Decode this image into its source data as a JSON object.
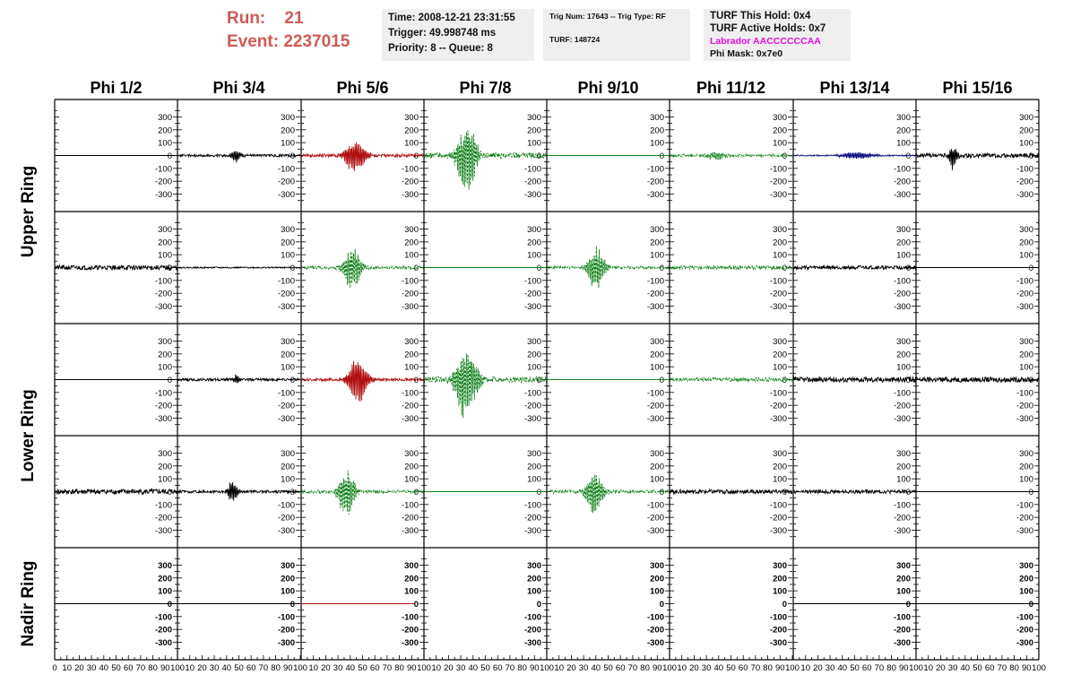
{
  "header": {
    "run_label": "Run:",
    "run_value": "21",
    "event_label": "Event:",
    "event_value": "2237015",
    "time": "Time: 2008-12-21 23:31:55",
    "trigger": "Trigger: 49.998748 ms",
    "priority": "Priority: 8 -- Queue: 8",
    "trig_num": "Trig Num: 17643 -- Trig Type: RF",
    "turf": "TURF: 148724",
    "turf_this_hold": "TURF This Hold: 0x4",
    "turf_active_holds": "TURF Active Holds: 0x7",
    "labrador": "Labrador AACCCCCCAA",
    "phi_mask": "Phi Mask: 0x7e0",
    "labrador_color": "#e010e0",
    "run_color": "#d05a54"
  },
  "chart_data": {
    "type": "line",
    "grid": false,
    "columns": [
      "Phi 1/2",
      "Phi 3/4",
      "Phi 5/6",
      "Phi 7/8",
      "Phi 9/10",
      "Phi 11/12",
      "Phi 13/14",
      "Phi 15/16"
    ],
    "ring_labels": [
      {
        "text": "Upper Ring",
        "rows": [
          0,
          1
        ]
      },
      {
        "text": "Lower Ring",
        "rows": [
          2,
          3
        ]
      },
      {
        "text": "Nadir Ring",
        "rows": [
          4,
          4
        ]
      }
    ],
    "xlim": [
      0,
      100
    ],
    "ylim": [
      -380,
      380
    ],
    "y_ticks": [
      -300,
      -200,
      -100,
      0,
      100,
      200,
      300
    ],
    "x_tick_labels": [
      "0",
      "10",
      "20",
      "30",
      "40",
      "50",
      "60",
      "70",
      "80",
      "90",
      "100"
    ],
    "colors": {
      "black": "#000000",
      "red": "#b01010",
      "green": "#11811a",
      "blue": "#101080"
    },
    "rows": [
      [
        {
          "color": "black",
          "flat": true
        },
        {
          "color": "black",
          "peak": 48,
          "amp": 55,
          "noise": 10,
          "width": 4,
          "seed": 11
        },
        {
          "color": "red",
          "peak": 44,
          "amp": 140,
          "noise": 12,
          "width": 9,
          "seed": 12
        },
        {
          "color": "green",
          "dashed": true,
          "peak": 35,
          "amp": 320,
          "noise": 22,
          "width": 8,
          "seed": 13
        },
        {
          "color": "green",
          "flat": true
        },
        {
          "color": "green",
          "dashed": true,
          "peak": 37,
          "amp": 35,
          "noise": 10,
          "width": 10,
          "seed": 15
        },
        {
          "color": "blue",
          "peak": 52,
          "amp": 30,
          "noise": 5,
          "width": 15,
          "seed": 16
        },
        {
          "color": "black",
          "peak": 30,
          "amp": 130,
          "noise": 16,
          "width": 3,
          "seed": 17
        }
      ],
      [
        {
          "color": "black",
          "noise": 18,
          "seed": 21
        },
        {
          "color": "black",
          "noise": 5,
          "seed": 22
        },
        {
          "color": "green",
          "dashed": true,
          "peak": 42,
          "amp": 200,
          "noise": 12,
          "width": 7,
          "seed": 23
        },
        {
          "color": "green",
          "flat": true
        },
        {
          "color": "green",
          "dashed": true,
          "peak": 40,
          "amp": 190,
          "noise": 10,
          "width": 7,
          "seed": 25
        },
        {
          "color": "green",
          "dashed": true,
          "noise": 15,
          "seed": 26
        },
        {
          "color": "black",
          "noise": 14,
          "seed": 27
        },
        {
          "color": "black",
          "flat": true
        }
      ],
      [
        {
          "color": "black",
          "flat": true
        },
        {
          "color": "black",
          "peak": 48,
          "amp": 50,
          "noise": 10,
          "width": 3,
          "seed": 31
        },
        {
          "color": "red",
          "peak": 46,
          "amp": 200,
          "noise": 10,
          "width": 8,
          "seed": 32
        },
        {
          "color": "green",
          "dashed": true,
          "peak": 34,
          "amp": 320,
          "noise": 22,
          "width": 9,
          "seed": 33
        },
        {
          "color": "green",
          "flat": true
        },
        {
          "color": "green",
          "dashed": true,
          "noise": 15,
          "seed": 36
        },
        {
          "color": "black",
          "noise": 20,
          "seed": 37
        },
        {
          "color": "black",
          "noise": 20,
          "seed": 38
        }
      ],
      [
        {
          "color": "black",
          "noise": 20,
          "seed": 41
        },
        {
          "color": "black",
          "peak": 45,
          "amp": 100,
          "noise": 10,
          "width": 4,
          "seed": 42
        },
        {
          "color": "green",
          "dashed": true,
          "peak": 37,
          "amp": 200,
          "noise": 12,
          "width": 7,
          "seed": 43
        },
        {
          "color": "green",
          "flat": true
        },
        {
          "color": "green",
          "dashed": true,
          "peak": 39,
          "amp": 190,
          "noise": 12,
          "width": 7,
          "seed": 45
        },
        {
          "color": "black",
          "noise": 16,
          "seed": 46
        },
        {
          "color": "black",
          "noise": 14,
          "seed": 47
        },
        {
          "color": "black",
          "flat": true
        }
      ],
      [
        {
          "color": "black",
          "flat": true
        },
        {
          "color": "black",
          "flat": true
        },
        {
          "color": "red",
          "flat": true,
          "xmax": 92
        },
        {
          "color": "black",
          "empty": true
        },
        {
          "color": "black",
          "empty": true
        },
        {
          "color": "black",
          "empty": true
        },
        {
          "color": "black",
          "flat": true
        },
        {
          "color": "black",
          "flat": true
        }
      ]
    ]
  }
}
